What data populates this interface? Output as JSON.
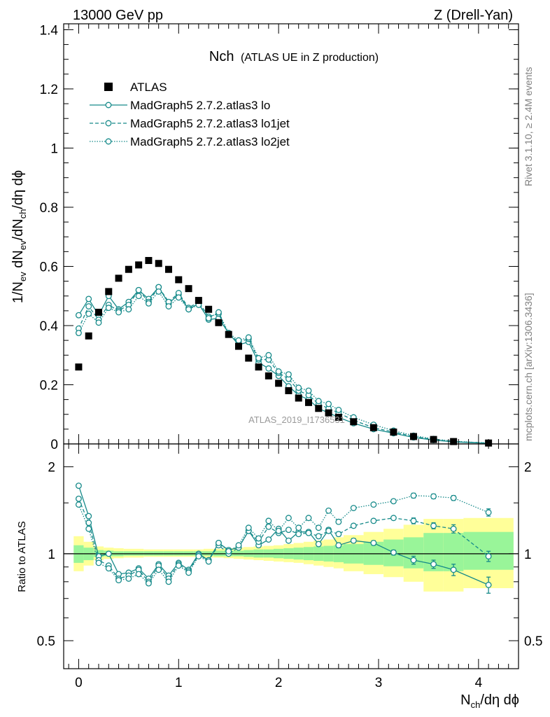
{
  "header": {
    "left": "13000 GeV pp",
    "right": "Z (Drell-Yan)"
  },
  "side_labels": {
    "rivet": "Rivet 3.1.10, ≥ 2.4M events",
    "mcplots": "mcplots.cern.ch [arXiv:1306.3436]"
  },
  "watermark": "ATLAS_2019_I1736531",
  "chart_data": [
    {
      "type": "line",
      "panel": "main",
      "title_main": "Nch",
      "title_sub": "(ATLAS UE in Z production)",
      "ylabel": "1/N_ev dN_ev/dN_ch/dη dϕ",
      "ylim": [
        0,
        1.42
      ],
      "yticks": [
        "0",
        "0.2",
        "0.4",
        "0.6",
        "0.8",
        "1",
        "1.2",
        "1.4"
      ],
      "ytick_values": [
        0,
        0.2,
        0.4,
        0.6,
        0.8,
        1.0,
        1.2,
        1.4
      ],
      "legend_placement": "top-left",
      "x": [
        0.0,
        0.1,
        0.2,
        0.3,
        0.4,
        0.5,
        0.6,
        0.7,
        0.8,
        0.9,
        1.0,
        1.1,
        1.2,
        1.3,
        1.4,
        1.5,
        1.6,
        1.7,
        1.8,
        1.9,
        2.0,
        2.1,
        2.2,
        2.3,
        2.4,
        2.5,
        2.6,
        2.75,
        2.95,
        3.15,
        3.35,
        3.55,
        3.75,
        4.1
      ],
      "series": [
        {
          "name": "ATLAS",
          "style": "markers",
          "color": "#000000",
          "values": [
            0.26,
            0.365,
            0.445,
            0.515,
            0.56,
            0.59,
            0.605,
            0.62,
            0.61,
            0.59,
            0.555,
            0.525,
            0.485,
            0.455,
            0.41,
            0.37,
            0.33,
            0.29,
            0.26,
            0.23,
            0.205,
            0.18,
            0.155,
            0.14,
            0.12,
            0.105,
            0.09,
            0.075,
            0.055,
            0.04,
            0.025,
            0.015,
            0.008,
            0.003
          ]
        },
        {
          "name": "MadGraph5 2.7.2.atlas3 lo",
          "style": "solid",
          "color": "#168a8a",
          "values": [
            0.435,
            0.49,
            0.435,
            0.5,
            0.455,
            0.48,
            0.52,
            0.49,
            0.53,
            0.475,
            0.505,
            0.455,
            0.475,
            0.42,
            0.425,
            0.375,
            0.335,
            0.345,
            0.275,
            0.255,
            0.23,
            0.195,
            0.165,
            0.15,
            0.12,
            0.105,
            0.09,
            0.07,
            0.05,
            0.036,
            0.022,
            0.013,
            0.007,
            0.002
          ]
        },
        {
          "name": "MadGraph5 2.7.2.atlas3 lo1jet",
          "style": "dashed",
          "color": "#168a8a",
          "values": [
            0.39,
            0.465,
            0.42,
            0.47,
            0.45,
            0.47,
            0.52,
            0.48,
            0.53,
            0.48,
            0.51,
            0.46,
            0.48,
            0.43,
            0.44,
            0.37,
            0.345,
            0.355,
            0.285,
            0.285,
            0.24,
            0.22,
            0.18,
            0.165,
            0.135,
            0.12,
            0.105,
            0.08,
            0.055,
            0.04,
            0.025,
            0.015,
            0.008,
            0.003
          ]
        },
        {
          "name": "MadGraph5 2.7.2.atlas3 lo2jet",
          "style": "dotted",
          "color": "#168a8a",
          "values": [
            0.375,
            0.44,
            0.41,
            0.46,
            0.445,
            0.455,
            0.5,
            0.475,
            0.515,
            0.465,
            0.495,
            0.455,
            0.47,
            0.425,
            0.445,
            0.375,
            0.35,
            0.36,
            0.29,
            0.3,
            0.245,
            0.235,
            0.19,
            0.18,
            0.145,
            0.135,
            0.115,
            0.09,
            0.065,
            0.045,
            0.028,
            0.017,
            0.009,
            0.003
          ]
        }
      ]
    },
    {
      "type": "line",
      "panel": "ratio",
      "xlabel": "N_ch/dη dϕ",
      "ylabel": "Ratio to ATLAS",
      "ylim": [
        0.4,
        2.4
      ],
      "yscale": "log",
      "yticks": [
        "0.5",
        "1",
        "2"
      ],
      "ytick_values": [
        0.5,
        1,
        2
      ],
      "xlim": [
        -0.15,
        4.4
      ],
      "xticks": [
        "0",
        "1",
        "2",
        "3",
        "4"
      ],
      "xtick_values": [
        0,
        1,
        2,
        3,
        4
      ],
      "x": [
        0.0,
        0.1,
        0.2,
        0.3,
        0.4,
        0.5,
        0.6,
        0.7,
        0.8,
        0.9,
        1.0,
        1.1,
        1.2,
        1.3,
        1.4,
        1.5,
        1.6,
        1.7,
        1.8,
        1.9,
        2.0,
        2.1,
        2.2,
        2.3,
        2.4,
        2.5,
        2.6,
        2.75,
        2.95,
        3.15,
        3.35,
        3.55,
        3.75,
        4.1
      ],
      "band_edges": [
        -0.05,
        0.05,
        0.15,
        0.25,
        0.35,
        0.45,
        0.55,
        0.65,
        0.75,
        0.85,
        0.95,
        1.05,
        1.15,
        1.25,
        1.35,
        1.45,
        1.55,
        1.65,
        1.75,
        1.85,
        1.95,
        2.05,
        2.15,
        2.25,
        2.35,
        2.45,
        2.55,
        2.65,
        2.85,
        3.05,
        3.25,
        3.45,
        3.65,
        3.85,
        4.35
      ],
      "bands": {
        "yellow_lo": [
          0.87,
          0.91,
          0.95,
          0.96,
          0.965,
          0.97,
          0.97,
          0.975,
          0.975,
          0.975,
          0.975,
          0.975,
          0.975,
          0.97,
          0.97,
          0.965,
          0.96,
          0.955,
          0.95,
          0.945,
          0.94,
          0.935,
          0.93,
          0.92,
          0.91,
          0.9,
          0.89,
          0.87,
          0.85,
          0.83,
          0.8,
          0.74,
          0.74,
          0.76
        ],
        "yellow_hi": [
          1.15,
          1.1,
          1.06,
          1.05,
          1.045,
          1.04,
          1.04,
          1.035,
          1.035,
          1.035,
          1.035,
          1.035,
          1.035,
          1.04,
          1.04,
          1.045,
          1.05,
          1.055,
          1.06,
          1.065,
          1.07,
          1.08,
          1.09,
          1.1,
          1.11,
          1.12,
          1.14,
          1.16,
          1.19,
          1.22,
          1.26,
          1.32,
          1.32,
          1.33
        ],
        "green_lo": [
          0.93,
          0.95,
          0.975,
          0.98,
          0.98,
          0.985,
          0.985,
          0.985,
          0.985,
          0.985,
          0.985,
          0.985,
          0.985,
          0.985,
          0.98,
          0.98,
          0.98,
          0.975,
          0.97,
          0.97,
          0.965,
          0.96,
          0.955,
          0.95,
          0.945,
          0.94,
          0.935,
          0.925,
          0.915,
          0.905,
          0.89,
          0.87,
          0.87,
          0.88
        ],
        "green_hi": [
          1.07,
          1.05,
          1.03,
          1.025,
          1.02,
          1.02,
          1.02,
          1.02,
          1.02,
          1.02,
          1.02,
          1.02,
          1.02,
          1.02,
          1.025,
          1.025,
          1.025,
          1.03,
          1.035,
          1.035,
          1.04,
          1.045,
          1.05,
          1.055,
          1.06,
          1.065,
          1.07,
          1.08,
          1.1,
          1.12,
          1.14,
          1.18,
          1.18,
          1.19
        ]
      },
      "series": [
        {
          "name": "MadGraph5 2.7.2.atlas3 lo",
          "style": "solid",
          "values": [
            1.72,
            1.35,
            0.98,
            1.0,
            0.85,
            0.86,
            0.89,
            0.82,
            0.92,
            0.84,
            0.93,
            0.88,
            1.0,
            0.95,
            1.09,
            1.03,
            1.05,
            1.2,
            1.07,
            1.12,
            1.22,
            1.11,
            1.19,
            1.19,
            1.08,
            1.21,
            1.07,
            1.11,
            1.09,
            1.01,
            0.95,
            0.92,
            0.88,
            0.78
          ],
          "errors": [
            0.01,
            0.01,
            0.01,
            0.01,
            0.01,
            0.01,
            0.01,
            0.01,
            0.01,
            0.01,
            0.01,
            0.01,
            0.01,
            0.01,
            0.01,
            0.01,
            0.01,
            0.01,
            0.01,
            0.01,
            0.01,
            0.01,
            0.01,
            0.01,
            0.01,
            0.02,
            0.02,
            0.02,
            0.02,
            0.02,
            0.03,
            0.03,
            0.04,
            0.05
          ]
        },
        {
          "name": "MadGraph5 2.7.2.atlas3 lo1jet",
          "style": "dashed",
          "values": [
            1.55,
            1.28,
            0.95,
            0.91,
            0.82,
            0.84,
            0.88,
            0.8,
            0.91,
            0.82,
            0.92,
            0.87,
            0.99,
            0.95,
            1.07,
            1.0,
            1.05,
            1.2,
            1.1,
            1.24,
            1.18,
            1.21,
            1.17,
            1.18,
            1.15,
            1.2,
            1.17,
            1.25,
            1.3,
            1.33,
            1.3,
            1.25,
            1.22,
            0.98
          ],
          "errors": [
            0.01,
            0.01,
            0.01,
            0.01,
            0.01,
            0.01,
            0.01,
            0.01,
            0.01,
            0.01,
            0.01,
            0.01,
            0.01,
            0.01,
            0.01,
            0.01,
            0.01,
            0.01,
            0.01,
            0.01,
            0.01,
            0.01,
            0.01,
            0.01,
            0.01,
            0.02,
            0.02,
            0.02,
            0.02,
            0.02,
            0.03,
            0.03,
            0.04,
            0.04
          ]
        },
        {
          "name": "MadGraph5 2.7.2.atlas3 lo2jet",
          "style": "dotted",
          "values": [
            1.48,
            1.22,
            0.93,
            0.89,
            0.81,
            0.82,
            0.85,
            0.79,
            0.88,
            0.8,
            0.91,
            0.86,
            0.98,
            0.94,
            1.09,
            1.02,
            1.07,
            1.23,
            1.13,
            1.3,
            1.2,
            1.33,
            1.23,
            1.33,
            1.23,
            1.41,
            1.29,
            1.44,
            1.48,
            1.52,
            1.59,
            1.58,
            1.56,
            1.39
          ],
          "errors": [
            0.01,
            0.01,
            0.01,
            0.01,
            0.01,
            0.01,
            0.01,
            0.01,
            0.01,
            0.01,
            0.01,
            0.01,
            0.01,
            0.01,
            0.01,
            0.01,
            0.01,
            0.01,
            0.01,
            0.01,
            0.01,
            0.01,
            0.01,
            0.01,
            0.01,
            0.02,
            0.02,
            0.02,
            0.02,
            0.02,
            0.03,
            0.03,
            0.03,
            0.04
          ]
        }
      ]
    }
  ]
}
